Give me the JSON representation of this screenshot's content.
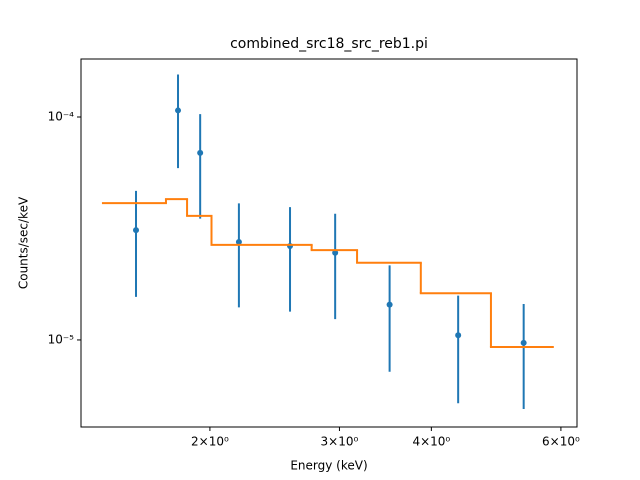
{
  "chart_data": {
    "type": "errorbar-step",
    "title": "combined_src18_src_reb1.pi",
    "xlabel": "Energy (keV)",
    "ylabel": "Counts/sec/keV",
    "xscale": "log",
    "yscale": "log",
    "xlim": [
      1.336,
      6.31
    ],
    "ylim": [
      4.07e-06,
      0.000182
    ],
    "xticks": [
      {
        "value": 2,
        "label": "2×10⁰"
      },
      {
        "value": 3,
        "label": "3×10⁰"
      },
      {
        "value": 4,
        "label": "4×10⁰"
      },
      {
        "value": 6,
        "label": "6×10⁰"
      }
    ],
    "yticks": [
      {
        "value": 1e-05,
        "label": "10⁻⁵"
      },
      {
        "value": 0.0001,
        "label": "10⁻⁴"
      }
    ],
    "series": [
      {
        "type": "errorbar",
        "color": "#1f77b4",
        "x": [
          1.587,
          1.81,
          1.94,
          2.19,
          2.57,
          2.96,
          3.51,
          4.35,
          5.34
        ],
        "values": [
          3.11e-05,
          0.000107,
          6.9e-05,
          2.75e-05,
          2.64e-05,
          2.46e-05,
          1.44e-05,
          1.05e-05,
          9.7e-06
        ],
        "yerr": [
          1.55e-05,
          4.8e-05,
          3.4e-05,
          1.35e-05,
          1.3e-05,
          1.22e-05,
          7.2e-06,
          5.3e-06,
          4.8e-06
        ]
      },
      {
        "type": "step",
        "color": "#ff7f0e",
        "bins": [
          1.431,
          1.743,
          1.862,
          2.01,
          2.75,
          3.17,
          3.87,
          4.82,
          5.85
        ],
        "values": [
          4.11e-05,
          4.28e-05,
          3.6e-05,
          2.67e-05,
          2.53e-05,
          2.22e-05,
          1.62e-05,
          9.3e-06
        ]
      }
    ]
  }
}
